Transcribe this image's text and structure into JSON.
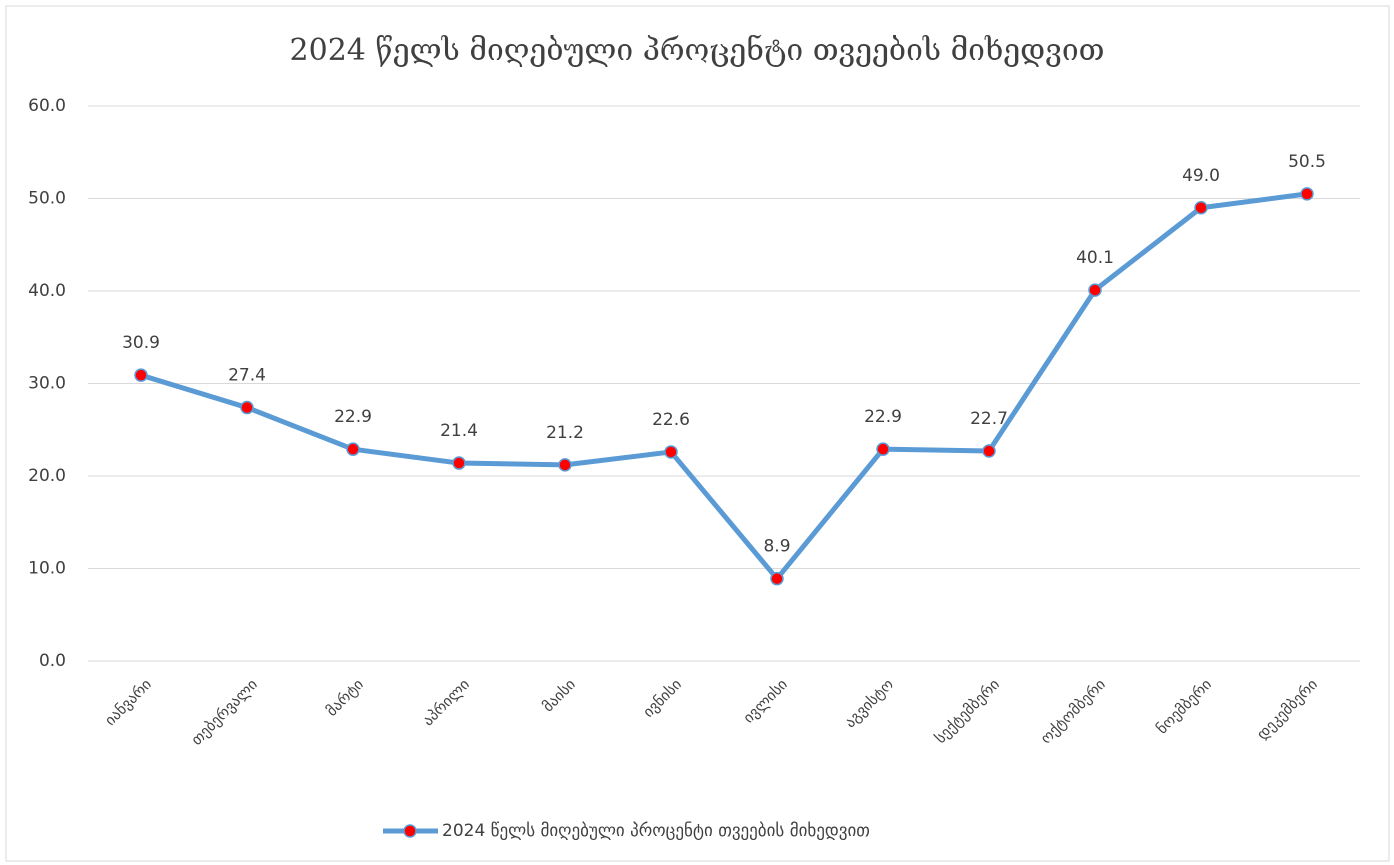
{
  "chart_data": {
    "type": "line",
    "title": "2024 წელს მიღებული პროცენტი თვეების მიხედვით",
    "categories": [
      "იანვარი",
      "თებერვალი",
      "მარტი",
      "აპრილი",
      "მაისი",
      "ივნისი",
      "ივლისი",
      "აგვისტო",
      "სექტემბერი",
      "ოქტომბერი",
      "ნოემბერი",
      "დეკემბერი"
    ],
    "series": [
      {
        "name": "2024 წელს მიღებული პროცენტი თვეების მიხედვით",
        "color": "#5b9bd5",
        "marker_color": "#ff0000",
        "values": [
          30.9,
          27.4,
          22.9,
          21.4,
          21.2,
          22.6,
          8.9,
          22.9,
          22.7,
          40.1,
          49.0,
          50.5
        ],
        "value_labels": [
          "30.9",
          "27.4",
          "22.9",
          "21.4",
          "21.2",
          "22.6",
          "8.9",
          "22.9",
          "22.7",
          "40.1",
          "49.0",
          "50.5"
        ]
      }
    ],
    "ylim": [
      0,
      60
    ],
    "yticks": [
      {
        "value": 0,
        "label": "0.0"
      },
      {
        "value": 10,
        "label": "10.0"
      },
      {
        "value": 20,
        "label": "20.0"
      },
      {
        "value": 30,
        "label": "30.0"
      },
      {
        "value": 40,
        "label": "40.0"
      },
      {
        "value": 50,
        "label": "50.0"
      },
      {
        "value": 60,
        "label": "60.0"
      }
    ],
    "grid": true,
    "legend": "bottom"
  }
}
